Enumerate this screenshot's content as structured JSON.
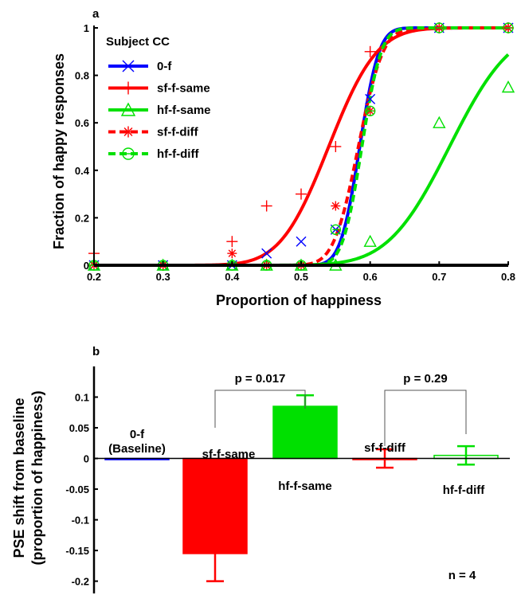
{
  "chart_data": [
    {
      "type": "line",
      "panel_label": "a",
      "xlabel": "Proportion of happiness",
      "ylabel": "Fraction of happy responses",
      "xlim": [
        0.2,
        0.8
      ],
      "ylim": [
        0,
        1
      ],
      "xticks": [
        "0.2",
        "0.3",
        "0.4",
        "0.5",
        "0.6",
        "0.7",
        "0.8"
      ],
      "yticks": [
        "0",
        "0.2",
        "0.4",
        "0.6",
        "0.8",
        "1"
      ],
      "legend_title": "Subject CC",
      "legend_position": "top-left",
      "x": [
        0.2,
        0.3,
        0.4,
        0.45,
        0.5,
        0.55,
        0.6,
        0.7,
        0.8
      ],
      "series": [
        {
          "name": "0-f",
          "color": "#0000ff",
          "marker": "x",
          "dash": false,
          "fit": {
            "mu": 0.585,
            "sigma": 0.022
          },
          "values": [
            0,
            0,
            0,
            0.05,
            0.1,
            0.15,
            0.7,
            1.0,
            1.0
          ]
        },
        {
          "name": "sf-f-same",
          "color": "#ff0000",
          "marker": "+",
          "dash": false,
          "fit": {
            "mu": 0.54,
            "sigma": 0.055
          },
          "values": [
            0.05,
            0,
            0.1,
            0.25,
            0.3,
            0.5,
            0.9,
            1.0,
            1.0
          ]
        },
        {
          "name": "hf-f-same",
          "color": "#00e000",
          "marker": "triangle",
          "dash": false,
          "fit": {
            "mu": 0.715,
            "sigma": 0.07
          },
          "values": [
            0,
            0,
            0,
            0,
            0,
            0,
            0.1,
            0.6,
            0.75
          ]
        },
        {
          "name": "sf-f-diff",
          "color": "#ff0000",
          "marker": "asterisk",
          "dash": true,
          "fit": {
            "mu": 0.583,
            "sigma": 0.028
          },
          "values": [
            0,
            0,
            0.05,
            0,
            0,
            0.25,
            0.65,
            1.0,
            1.0
          ]
        },
        {
          "name": "hf-f-diff",
          "color": "#00e000",
          "marker": "circle",
          "dash": true,
          "fit": {
            "mu": 0.588,
            "sigma": 0.022
          },
          "values": [
            0,
            0,
            0,
            0,
            0,
            0.15,
            0.65,
            1.0,
            1.0
          ]
        }
      ]
    },
    {
      "type": "bar",
      "panel_label": "b",
      "ylabel_line1": "PSE shift from baseline",
      "ylabel_line2": "(proportion of happiness)",
      "ylim": [
        -0.22,
        0.15
      ],
      "yticks": [
        "0.1",
        "0.05",
        "0",
        "-0.05",
        "-0.1",
        "-0.15",
        "-0.2"
      ],
      "ytick_values": [
        0.1,
        0.05,
        0,
        -0.05,
        -0.1,
        -0.15,
        -0.2
      ],
      "bars": [
        {
          "label": "0-f",
          "label_extra": "(Baseline)",
          "value": 0,
          "error": 0,
          "color": "#0000ff",
          "filled": true
        },
        {
          "label": "sf-f-same",
          "value": -0.155,
          "error": 0.045,
          "color": "#ff0000",
          "filled": true
        },
        {
          "label": "hf-f-same",
          "value": 0.085,
          "error": 0.018,
          "color": "#00e000",
          "filled": true
        },
        {
          "label": "sf-f-diff",
          "value": 0,
          "error": 0.015,
          "color": "#ff0000",
          "filled": false
        },
        {
          "label": "hf-f-diff",
          "value": 0.005,
          "error": 0.015,
          "color": "#00e000",
          "filled": false
        }
      ],
      "comparisons": [
        {
          "from": 1,
          "to": 2,
          "label": "p = 0.017"
        },
        {
          "from": 3,
          "to": 4,
          "label": "p = 0.29"
        }
      ],
      "annotation": "n = 4"
    }
  ]
}
